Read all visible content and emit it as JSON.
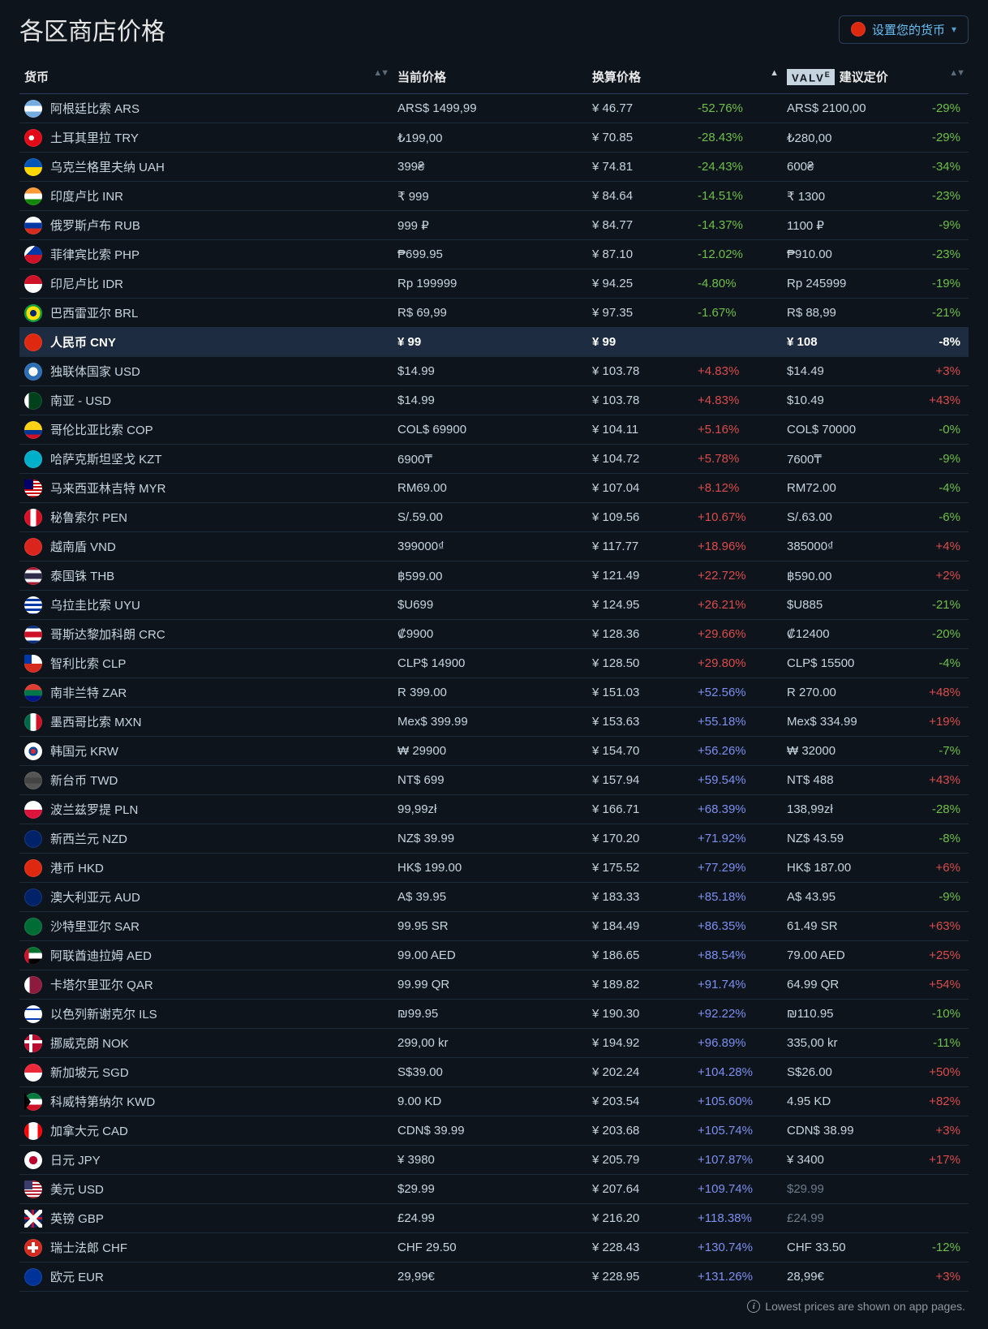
{
  "header": {
    "title": "各区商店价格",
    "set_currency_label": "设置您的货币",
    "set_currency_flag": "f-cn"
  },
  "columns": {
    "currency": "货币",
    "current_price": "当前价格",
    "converted_price": "换算价格",
    "valve_suggested": "建议定价",
    "valve_brand": "VALV",
    "valve_brand_e": "E"
  },
  "footnote": "Lowest prices are shown on app pages.",
  "colors": {
    "green": "#6fbf4b",
    "red": "#d94c4c",
    "purple": "#7d8ff0",
    "muted": "#6b7b8c",
    "bg": "#0e141b",
    "row_border": "#1c2b3a",
    "highlight_bg": "#1d2c40"
  },
  "pct_color_rules": "green if <0; red if >0 and <=50; purple if >50; muted if suggested row is base",
  "rows": [
    {
      "flag": "f-ar",
      "name": "阿根廷比索 ARS",
      "price": "ARS$ 1499,99",
      "conv": "¥ 46.77",
      "pct": "-52.76%",
      "pclass": "green",
      "sugg": "ARS$ 2100,00",
      "spct": "-29%",
      "sclass": "green"
    },
    {
      "flag": "f-tr",
      "name": "土耳其里拉 TRY",
      "price": "₺199,00",
      "conv": "¥ 70.85",
      "pct": "-28.43%",
      "pclass": "green",
      "sugg": "₺280,00",
      "spct": "-29%",
      "sclass": "green"
    },
    {
      "flag": "f-ua",
      "name": "乌克兰格里夫纳 UAH",
      "price": "399₴",
      "conv": "¥ 74.81",
      "pct": "-24.43%",
      "pclass": "green",
      "sugg": "600₴",
      "spct": "-34%",
      "sclass": "green"
    },
    {
      "flag": "f-in",
      "name": "印度卢比 INR",
      "price": "₹ 999",
      "conv": "¥ 84.64",
      "pct": "-14.51%",
      "pclass": "green",
      "sugg": "₹ 1300",
      "spct": "-23%",
      "sclass": "green"
    },
    {
      "flag": "f-ru",
      "name": "俄罗斯卢布 RUB",
      "price": "999 ₽",
      "conv": "¥ 84.77",
      "pct": "-14.37%",
      "pclass": "green",
      "sugg": "1100 ₽",
      "spct": "-9%",
      "sclass": "green"
    },
    {
      "flag": "f-ph",
      "name": "菲律宾比索 PHP",
      "price": "₱699.95",
      "conv": "¥ 87.10",
      "pct": "-12.02%",
      "pclass": "green",
      "sugg": "₱910.00",
      "spct": "-23%",
      "sclass": "green"
    },
    {
      "flag": "f-id",
      "name": "印尼卢比 IDR",
      "price": "Rp 199999",
      "conv": "¥ 94.25",
      "pct": "-4.80%",
      "pclass": "green",
      "sugg": "Rp 245999",
      "spct": "-19%",
      "sclass": "green"
    },
    {
      "flag": "f-br",
      "name": "巴西雷亚尔 BRL",
      "price": "R$ 69,99",
      "conv": "¥ 97.35",
      "pct": "-1.67%",
      "pclass": "green",
      "sugg": "R$ 88,99",
      "spct": "-21%",
      "sclass": "green"
    },
    {
      "flag": "f-cn",
      "name": "人民币 CNY",
      "price": "¥ 99",
      "conv": "¥ 99",
      "pct": "",
      "pclass": "muted",
      "sugg": "¥ 108",
      "spct": "-8%",
      "sclass": "green",
      "highlight": true,
      "conv_muted": true
    },
    {
      "flag": "f-cis",
      "name": "独联体国家 USD",
      "price": "$14.99",
      "conv": "¥ 103.78",
      "pct": "+4.83%",
      "pclass": "red",
      "sugg": "$14.49",
      "spct": "+3%",
      "sclass": "red"
    },
    {
      "flag": "f-pk",
      "name": "南亚 - USD",
      "price": "$14.99",
      "conv": "¥ 103.78",
      "pct": "+4.83%",
      "pclass": "red",
      "sugg": "$10.49",
      "spct": "+43%",
      "sclass": "red"
    },
    {
      "flag": "f-co",
      "name": "哥伦比亚比索 COP",
      "price": "COL$ 69900",
      "conv": "¥ 104.11",
      "pct": "+5.16%",
      "pclass": "red",
      "sugg": "COL$ 70000",
      "spct": "-0%",
      "sclass": "green"
    },
    {
      "flag": "f-kz",
      "name": "哈萨克斯坦坚戈 KZT",
      "price": "6900₸",
      "conv": "¥ 104.72",
      "pct": "+5.78%",
      "pclass": "red",
      "sugg": "7600₸",
      "spct": "-9%",
      "sclass": "green"
    },
    {
      "flag": "f-my",
      "name": "马来西亚林吉特 MYR",
      "price": "RM69.00",
      "conv": "¥ 107.04",
      "pct": "+8.12%",
      "pclass": "red",
      "sugg": "RM72.00",
      "spct": "-4%",
      "sclass": "green"
    },
    {
      "flag": "f-pe",
      "name": "秘鲁索尔 PEN",
      "price": "S/.59.00",
      "conv": "¥ 109.56",
      "pct": "+10.67%",
      "pclass": "red",
      "sugg": "S/.63.00",
      "spct": "-6%",
      "sclass": "green"
    },
    {
      "flag": "f-vn",
      "name": "越南盾 VND",
      "price": "399000₫",
      "conv": "¥ 117.77",
      "pct": "+18.96%",
      "pclass": "red",
      "sugg": "385000₫",
      "spct": "+4%",
      "sclass": "red"
    },
    {
      "flag": "f-th",
      "name": "泰国铢 THB",
      "price": "฿599.00",
      "conv": "¥ 121.49",
      "pct": "+22.72%",
      "pclass": "red",
      "sugg": "฿590.00",
      "spct": "+2%",
      "sclass": "red"
    },
    {
      "flag": "f-uy",
      "name": "乌拉圭比索 UYU",
      "price": "$U699",
      "conv": "¥ 124.95",
      "pct": "+26.21%",
      "pclass": "red",
      "sugg": "$U885",
      "spct": "-21%",
      "sclass": "green"
    },
    {
      "flag": "f-cr",
      "name": "哥斯达黎加科朗 CRC",
      "price": "₡9900",
      "conv": "¥ 128.36",
      "pct": "+29.66%",
      "pclass": "red",
      "sugg": "₡12400",
      "spct": "-20%",
      "sclass": "green"
    },
    {
      "flag": "f-cl",
      "name": "智利比索 CLP",
      "price": "CLP$ 14900",
      "conv": "¥ 128.50",
      "pct": "+29.80%",
      "pclass": "red",
      "sugg": "CLP$ 15500",
      "spct": "-4%",
      "sclass": "green"
    },
    {
      "flag": "f-za",
      "name": "南非兰特 ZAR",
      "price": "R 399.00",
      "conv": "¥ 151.03",
      "pct": "+52.56%",
      "pclass": "purple",
      "sugg": "R 270.00",
      "spct": "+48%",
      "sclass": "red"
    },
    {
      "flag": "f-mx",
      "name": "墨西哥比索 MXN",
      "price": "Mex$ 399.99",
      "conv": "¥ 153.63",
      "pct": "+55.18%",
      "pclass": "purple",
      "sugg": "Mex$ 334.99",
      "spct": "+19%",
      "sclass": "red"
    },
    {
      "flag": "f-kr",
      "name": "韩国元 KRW",
      "price": "₩ 29900",
      "conv": "¥ 154.70",
      "pct": "+56.26%",
      "pclass": "purple",
      "sugg": "₩ 32000",
      "spct": "-7%",
      "sclass": "green"
    },
    {
      "flag": "f-tw",
      "name": "新台币 TWD",
      "price": "NT$ 699",
      "conv": "¥ 157.94",
      "pct": "+59.54%",
      "pclass": "purple",
      "sugg": "NT$ 488",
      "spct": "+43%",
      "sclass": "red"
    },
    {
      "flag": "f-pl",
      "name": "波兰兹罗提 PLN",
      "price": "99,99zł",
      "conv": "¥ 166.71",
      "pct": "+68.39%",
      "pclass": "purple",
      "sugg": "138,99zł",
      "spct": "-28%",
      "sclass": "green"
    },
    {
      "flag": "f-nz",
      "name": "新西兰元 NZD",
      "price": "NZ$ 39.99",
      "conv": "¥ 170.20",
      "pct": "+71.92%",
      "pclass": "purple",
      "sugg": "NZ$ 43.59",
      "spct": "-8%",
      "sclass": "green"
    },
    {
      "flag": "f-hk",
      "name": "港币 HKD",
      "price": "HK$ 199.00",
      "conv": "¥ 175.52",
      "pct": "+77.29%",
      "pclass": "purple",
      "sugg": "HK$ 187.00",
      "spct": "+6%",
      "sclass": "red"
    },
    {
      "flag": "f-au",
      "name": "澳大利亚元 AUD",
      "price": "A$ 39.95",
      "conv": "¥ 183.33",
      "pct": "+85.18%",
      "pclass": "purple",
      "sugg": "A$ 43.95",
      "spct": "-9%",
      "sclass": "green"
    },
    {
      "flag": "f-sa",
      "name": "沙特里亚尔 SAR",
      "price": "99.95 SR",
      "conv": "¥ 184.49",
      "pct": "+86.35%",
      "pclass": "purple",
      "sugg": "61.49 SR",
      "spct": "+63%",
      "sclass": "red"
    },
    {
      "flag": "f-ae",
      "name": "阿联酋迪拉姆 AED",
      "price": "99.00 AED",
      "conv": "¥ 186.65",
      "pct": "+88.54%",
      "pclass": "purple",
      "sugg": "79.00 AED",
      "spct": "+25%",
      "sclass": "red"
    },
    {
      "flag": "f-qa",
      "name": "卡塔尔里亚尔 QAR",
      "price": "99.99 QR",
      "conv": "¥ 189.82",
      "pct": "+91.74%",
      "pclass": "purple",
      "sugg": "64.99 QR",
      "spct": "+54%",
      "sclass": "red"
    },
    {
      "flag": "f-il",
      "name": "以色列新谢克尔 ILS",
      "price": "₪99.95",
      "conv": "¥ 190.30",
      "pct": "+92.22%",
      "pclass": "purple",
      "sugg": "₪110.95",
      "spct": "-10%",
      "sclass": "green"
    },
    {
      "flag": "f-no",
      "name": "挪威克朗 NOK",
      "price": "299,00 kr",
      "conv": "¥ 194.92",
      "pct": "+96.89%",
      "pclass": "purple",
      "sugg": "335,00 kr",
      "spct": "-11%",
      "sclass": "green"
    },
    {
      "flag": "f-sg",
      "name": "新加坡元 SGD",
      "price": "S$39.00",
      "conv": "¥ 202.24",
      "pct": "+104.28%",
      "pclass": "purple",
      "sugg": "S$26.00",
      "spct": "+50%",
      "sclass": "red"
    },
    {
      "flag": "f-kw",
      "name": "科威特第纳尔 KWD",
      "price": "9.00 KD",
      "conv": "¥ 203.54",
      "pct": "+105.60%",
      "pclass": "purple",
      "sugg": "4.95 KD",
      "spct": "+82%",
      "sclass": "red"
    },
    {
      "flag": "f-ca",
      "name": "加拿大元 CAD",
      "price": "CDN$ 39.99",
      "conv": "¥ 203.68",
      "pct": "+105.74%",
      "pclass": "purple",
      "sugg": "CDN$ 38.99",
      "spct": "+3%",
      "sclass": "red"
    },
    {
      "flag": "f-jp",
      "name": "日元 JPY",
      "price": "¥ 3980",
      "conv": "¥ 205.79",
      "pct": "+107.87%",
      "pclass": "purple",
      "sugg": "¥ 3400",
      "spct": "+17%",
      "sclass": "red"
    },
    {
      "flag": "f-us",
      "name": "美元 USD",
      "price": "$29.99",
      "conv": "¥ 207.64",
      "pct": "+109.74%",
      "pclass": "purple",
      "sugg": "$29.99",
      "spct": "",
      "sclass": "muted",
      "sugg_muted": true
    },
    {
      "flag": "f-gb",
      "name": "英镑 GBP",
      "price": "£24.99",
      "conv": "¥ 216.20",
      "pct": "+118.38%",
      "pclass": "purple",
      "sugg": "£24.99",
      "spct": "",
      "sclass": "muted",
      "sugg_muted": true
    },
    {
      "flag": "f-ch",
      "name": "瑞士法郎 CHF",
      "price": "CHF 29.50",
      "conv": "¥ 228.43",
      "pct": "+130.74%",
      "pclass": "purple",
      "sugg": "CHF 33.50",
      "spct": "-12%",
      "sclass": "green"
    },
    {
      "flag": "f-eu",
      "name": "欧元 EUR",
      "price": "29,99€",
      "conv": "¥ 228.95",
      "pct": "+131.26%",
      "pclass": "purple",
      "sugg": "28,99€",
      "spct": "+3%",
      "sclass": "red"
    }
  ]
}
